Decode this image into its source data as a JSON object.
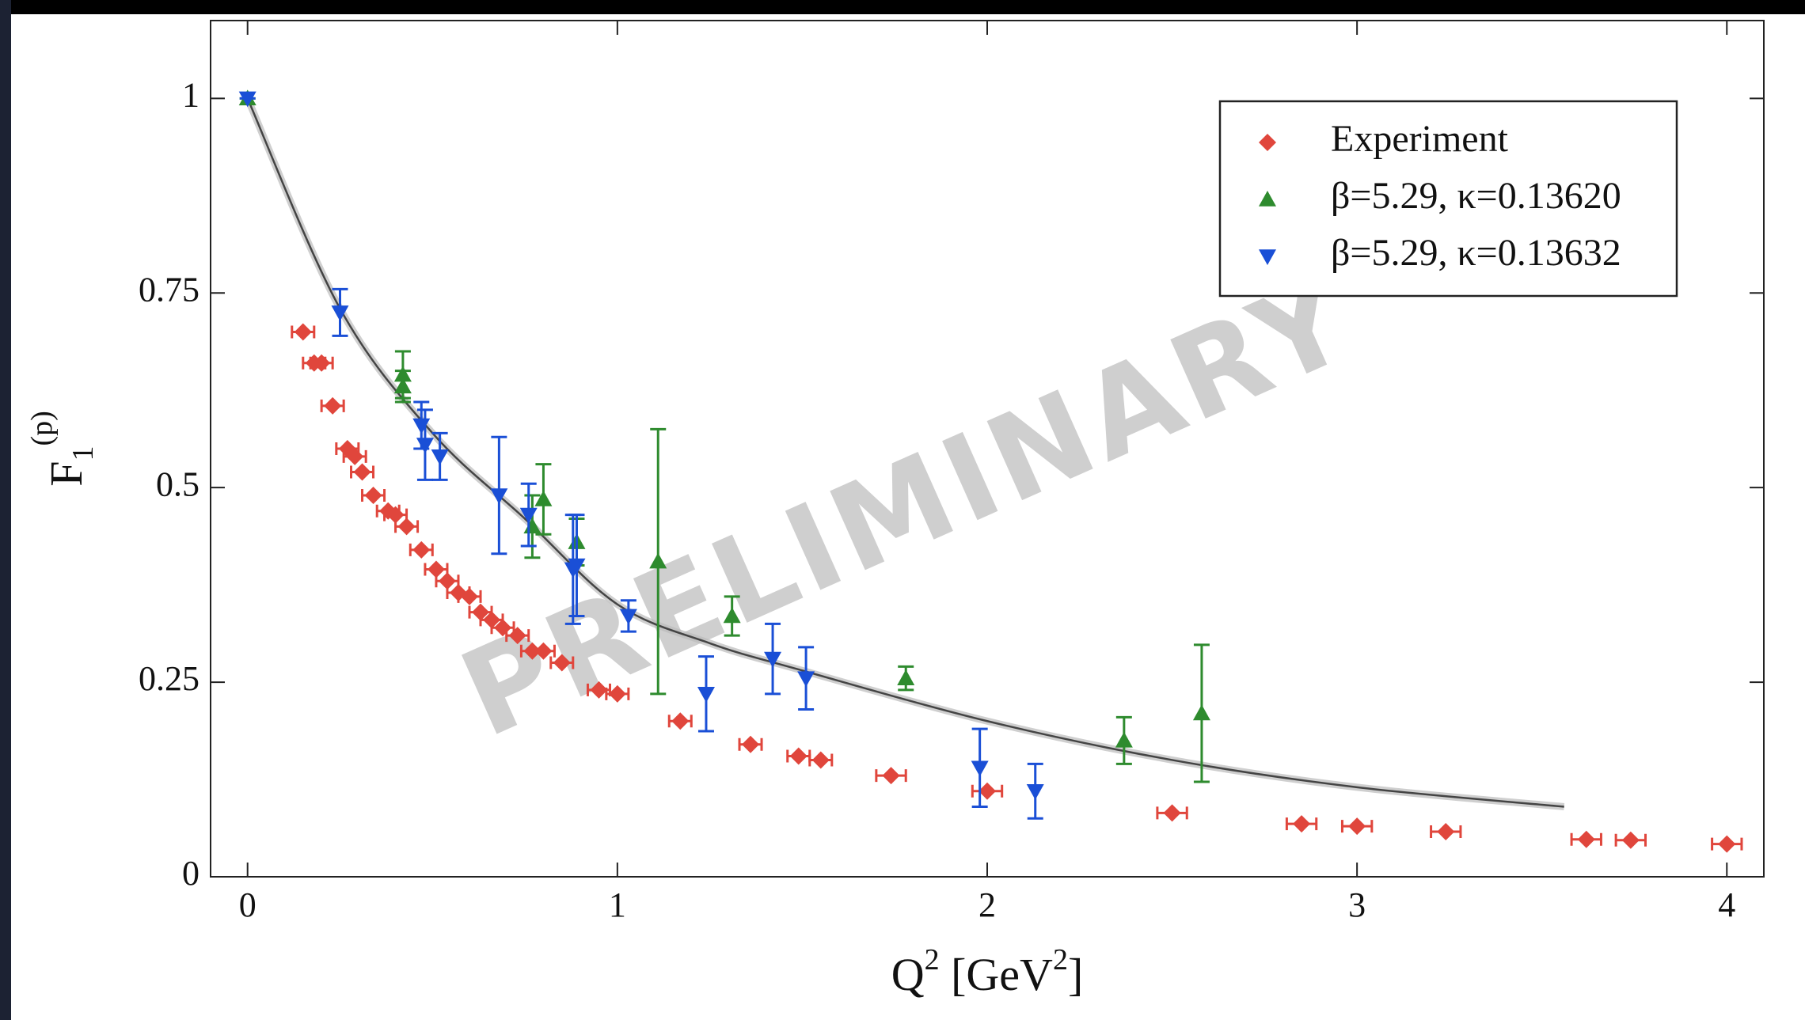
{
  "chart_data": {
    "type": "scatter",
    "xlabel": [
      "Q",
      "2",
      " [GeV",
      "2",
      "]"
    ],
    "ylabel": [
      "F",
      "1",
      "(p)"
    ],
    "watermark": "PRELIMINARY",
    "xlim": [
      -0.1,
      4.1
    ],
    "ylim": [
      0,
      1.1
    ],
    "xticks": [
      0,
      1,
      2,
      3,
      4
    ],
    "yticks": [
      0,
      0.25,
      0.5,
      0.75,
      1
    ],
    "legend": "upper right",
    "series": [
      {
        "name": "Experiment",
        "color": "#e0463c",
        "marker": "diamond",
        "x": [
          0.15,
          0.18,
          0.2,
          0.23,
          0.27,
          0.29,
          0.31,
          0.34,
          0.38,
          0.4,
          0.43,
          0.47,
          0.51,
          0.54,
          0.57,
          0.6,
          0.63,
          0.66,
          0.69,
          0.73,
          0.77,
          0.8,
          0.85,
          0.95,
          1.0,
          1.17,
          1.36,
          1.49,
          1.55,
          1.74,
          2.0,
          2.5,
          2.85,
          3.0,
          3.24,
          3.62,
          3.74,
          4.0
        ],
        "y": [
          0.7,
          0.66,
          0.66,
          0.605,
          0.55,
          0.54,
          0.52,
          0.49,
          0.47,
          0.465,
          0.45,
          0.42,
          0.395,
          0.38,
          0.365,
          0.36,
          0.34,
          0.33,
          0.32,
          0.31,
          0.29,
          0.29,
          0.275,
          0.24,
          0.235,
          0.2,
          0.17,
          0.155,
          0.15,
          0.13,
          0.11,
          0.082,
          0.068,
          0.065,
          0.058,
          0.048,
          0.047,
          0.042
        ],
        "xerr": [
          0.03,
          0.03,
          0.03,
          0.03,
          0.03,
          0.03,
          0.03,
          0.03,
          0.03,
          0.03,
          0.03,
          0.03,
          0.03,
          0.03,
          0.03,
          0.03,
          0.03,
          0.03,
          0.03,
          0.03,
          0.03,
          0.03,
          0.03,
          0.03,
          0.03,
          0.03,
          0.03,
          0.03,
          0.03,
          0.04,
          0.04,
          0.04,
          0.04,
          0.04,
          0.04,
          0.04,
          0.04,
          0.04
        ]
      },
      {
        "name": "β=5.29, κ=0.13620",
        "color": "#2e8b2e",
        "marker": "up",
        "x": [
          0,
          0.42,
          0.42,
          0.77,
          0.8,
          0.89,
          1.11,
          1.31,
          1.78,
          2.37,
          2.58
        ],
        "y": [
          1.0,
          0.63,
          0.645,
          0.45,
          0.485,
          0.43,
          0.405,
          0.335,
          0.255,
          0.175,
          0.21
        ],
        "yerr": [
          0,
          0.02,
          0.03,
          0.04,
          0.045,
          0.03,
          0.17,
          0.025,
          0.015,
          0.03,
          0.088
        ]
      },
      {
        "name": "β=5.29, κ=0.13632",
        "color": "#1a4fd6",
        "marker": "down",
        "x": [
          0,
          0.25,
          0.47,
          0.48,
          0.52,
          0.68,
          0.76,
          0.88,
          0.89,
          1.03,
          1.24,
          1.42,
          1.51,
          1.98,
          2.13
        ],
        "y": [
          1.0,
          0.725,
          0.58,
          0.555,
          0.54,
          0.49,
          0.465,
          0.395,
          0.4,
          0.335,
          0.235,
          0.28,
          0.255,
          0.14,
          0.11
        ],
        "yerr": [
          0,
          0.03,
          0.03,
          0.045,
          0.03,
          0.075,
          0.04,
          0.07,
          0.065,
          0.02,
          0.048,
          0.045,
          0.04,
          0.05,
          0.035
        ]
      }
    ],
    "fit": {
      "color": "#444444",
      "x": [
        0,
        0.25,
        0.5,
        0.75,
        1,
        1.25,
        1.5,
        2,
        2.5,
        3,
        3.56
      ],
      "y": [
        1,
        0.73,
        0.57,
        0.46,
        0.35,
        0.3,
        0.265,
        0.2,
        0.15,
        0.115,
        0.09
      ]
    }
  }
}
